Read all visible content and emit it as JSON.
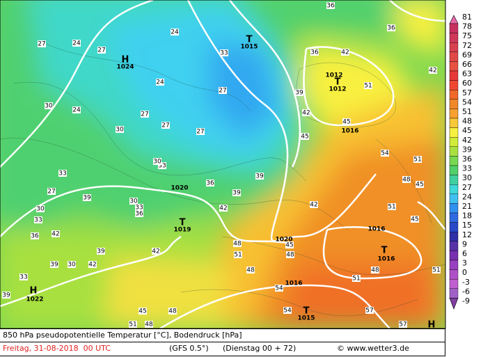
{
  "footer": {
    "title": "850 hPa pseudopotentielle Temperatur [°C], Bodendruck [hPa]",
    "date": "Freitag, 31-08-2018  00 UTC",
    "model": "(GFS 0.5°)",
    "run": "(Dienstag 00 + 72)",
    "credit": "© www.wetter3.de"
  },
  "colorbar": {
    "levels": [
      {
        "value": 81,
        "color": "#e868a8"
      },
      {
        "value": 78,
        "color": "#c83060"
      },
      {
        "value": 75,
        "color": "#d03858"
      },
      {
        "value": 72,
        "color": "#d84050"
      },
      {
        "value": 69,
        "color": "#e04848"
      },
      {
        "value": 66,
        "color": "#e85040"
      },
      {
        "value": 63,
        "color": "#e83838"
      },
      {
        "value": 60,
        "color": "#f04830"
      },
      {
        "value": 57,
        "color": "#f06828"
      },
      {
        "value": 54,
        "color": "#f08828"
      },
      {
        "value": 51,
        "color": "#f8a030"
      },
      {
        "value": 48,
        "color": "#f8c838"
      },
      {
        "value": 45,
        "color": "#f8f040"
      },
      {
        "value": 42,
        "color": "#d0ec38"
      },
      {
        "value": 39,
        "color": "#a8e040"
      },
      {
        "value": 36,
        "color": "#78d850"
      },
      {
        "value": 33,
        "color": "#50d068"
      },
      {
        "value": 30,
        "color": "#40d0a0"
      },
      {
        "value": 27,
        "color": "#40d8d8"
      },
      {
        "value": 24,
        "color": "#40c0f0"
      },
      {
        "value": 21,
        "color": "#3090f0"
      },
      {
        "value": 18,
        "color": "#3068e0"
      },
      {
        "value": 15,
        "color": "#2848c8"
      },
      {
        "value": 12,
        "color": "#3030a8"
      },
      {
        "value": 9,
        "color": "#5830a8"
      },
      {
        "value": 6,
        "color": "#7830b0"
      },
      {
        "value": 3,
        "color": "#9840c0"
      },
      {
        "value": 0,
        "color": "#b050c8"
      },
      {
        "value": -3,
        "color": "#c060d0"
      },
      {
        "value": -6,
        "color": "#a060c8"
      },
      {
        "value": -9,
        "color": "#8040a0"
      }
    ]
  },
  "map": {
    "pressure_labels": [
      "T",
      "1015",
      "H",
      "1024",
      "1012",
      "T",
      "1012",
      "1016",
      "1020",
      "T",
      "1019",
      "1016",
      "T",
      "1016",
      "1020",
      "1016",
      "H",
      "1022",
      "T",
      "1015",
      "H"
    ],
    "isotherm_labels": [
      "27",
      "27",
      "24",
      "24",
      "30",
      "24",
      "27",
      "30",
      "27",
      "24",
      "27",
      "27",
      "33",
      "36",
      "36",
      "36",
      "42",
      "39",
      "42",
      "51",
      "42",
      "45",
      "45",
      "54",
      "51",
      "48",
      "45",
      "51",
      "45",
      "42",
      "39",
      "39",
      "36",
      "42",
      "33",
      "30",
      "30",
      "33",
      "36",
      "27",
      "33",
      "30",
      "33",
      "36",
      "39",
      "39",
      "42",
      "42",
      "48",
      "51",
      "48",
      "45",
      "48",
      "54",
      "51",
      "51",
      "48",
      "57",
      "54",
      "57",
      "48",
      "45",
      "51",
      "48",
      "33",
      "30",
      "39",
      "39",
      "42"
    ]
  }
}
